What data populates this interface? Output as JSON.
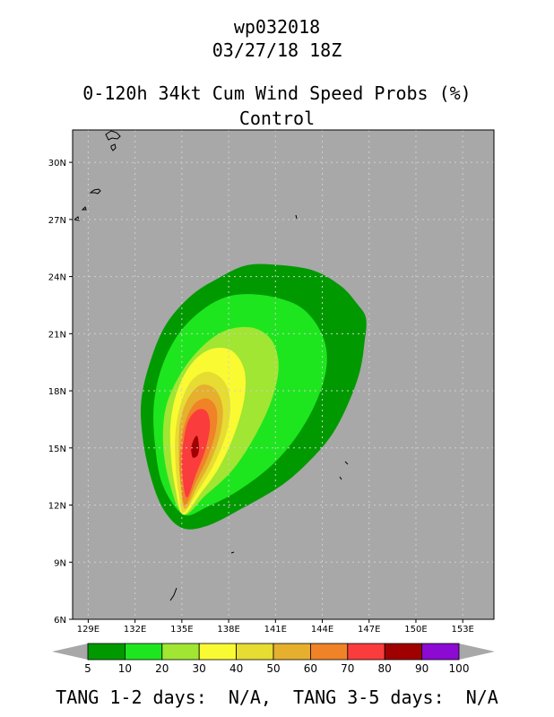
{
  "header": {
    "storm_id": "wp032018",
    "datetime": "03/27/18 18Z",
    "product": "0-120h 34kt Cum Wind Speed Probs (%)",
    "model": "Control"
  },
  "footer": {
    "tang_text": "TANG 1-2 days:  N/A,  TANG 3-5 days:  N/A"
  },
  "chart_data": {
    "type": "heatmap",
    "title": "0-120h 34kt Cum Wind Speed Probs (%)",
    "subtitle": "Control",
    "xlim": [
      128,
      155
    ],
    "ylim": [
      6,
      31.7
    ],
    "x_ticks": [
      129,
      132,
      135,
      138,
      141,
      144,
      147,
      150,
      153
    ],
    "x_tick_labels": [
      "129E",
      "132E",
      "135E",
      "138E",
      "141E",
      "144E",
      "147E",
      "150E",
      "153E"
    ],
    "y_ticks": [
      6,
      9,
      12,
      15,
      18,
      21,
      24,
      27,
      30
    ],
    "y_tick_labels": [
      "6N",
      "9N",
      "12N",
      "15N",
      "18N",
      "21N",
      "24N",
      "27N",
      "30N"
    ],
    "grid": true,
    "background_color": "#a8a8a8",
    "colorbar": {
      "levels": [
        5,
        10,
        20,
        30,
        40,
        50,
        60,
        70,
        80,
        90,
        100
      ],
      "labels": [
        "5",
        "10",
        "20",
        "30",
        "40",
        "50",
        "60",
        "70",
        "80",
        "90",
        "100"
      ],
      "colors": [
        "#009a00",
        "#1ee61e",
        "#a0e632",
        "#fafa32",
        "#e6dc32",
        "#e6af2d",
        "#f08228",
        "#fa3c3c",
        "#a00000",
        "#8c0ad2"
      ]
    },
    "contours": [
      {
        "level": 5,
        "color": "#009a00",
        "points": [
          [
            135.0,
            10.8
          ],
          [
            136.6,
            10.9
          ],
          [
            138.8,
            11.8
          ],
          [
            141.5,
            13.1
          ],
          [
            143.4,
            14.5
          ],
          [
            144.7,
            15.8
          ],
          [
            145.7,
            17.4
          ],
          [
            146.4,
            19.0
          ],
          [
            146.7,
            20.5
          ],
          [
            146.8,
            21.8
          ],
          [
            146.2,
            22.6
          ],
          [
            145.2,
            23.5
          ],
          [
            143.5,
            24.3
          ],
          [
            141.3,
            24.6
          ],
          [
            139.2,
            24.6
          ],
          [
            137.3,
            23.9
          ],
          [
            135.6,
            23.0
          ],
          [
            134.0,
            21.5
          ],
          [
            133.0,
            19.6
          ],
          [
            132.4,
            17.5
          ],
          [
            132.5,
            15.5
          ],
          [
            133.0,
            13.5
          ],
          [
            133.8,
            11.8
          ]
        ]
      },
      {
        "level": 10,
        "color": "#1ee61e",
        "points": [
          [
            135.1,
            11.5
          ],
          [
            136.6,
            11.9
          ],
          [
            138.7,
            12.8
          ],
          [
            140.9,
            14.2
          ],
          [
            142.6,
            15.9
          ],
          [
            143.8,
            17.8
          ],
          [
            144.3,
            19.6
          ],
          [
            143.9,
            21.1
          ],
          [
            142.6,
            22.4
          ],
          [
            140.4,
            23.0
          ],
          [
            138.2,
            23.0
          ],
          [
            136.4,
            22.3
          ],
          [
            134.8,
            21.0
          ],
          [
            133.7,
            19.2
          ],
          [
            133.2,
            17.2
          ],
          [
            133.3,
            15.0
          ],
          [
            133.8,
            13.0
          ]
        ]
      },
      {
        "level": 20,
        "color": "#a0e632",
        "points": [
          [
            135.1,
            11.5
          ],
          [
            136.5,
            12.5
          ],
          [
            138.2,
            13.8
          ],
          [
            139.6,
            15.5
          ],
          [
            140.7,
            17.4
          ],
          [
            141.2,
            19.2
          ],
          [
            140.8,
            20.6
          ],
          [
            139.6,
            21.3
          ],
          [
            137.9,
            21.2
          ],
          [
            136.4,
            20.4
          ],
          [
            135.0,
            19.0
          ],
          [
            134.0,
            17.2
          ],
          [
            133.8,
            15.2
          ],
          [
            134.2,
            13.2
          ]
        ]
      },
      {
        "level": 30,
        "color": "#fafa32",
        "points": [
          [
            135.1,
            11.5
          ],
          [
            136.2,
            12.6
          ],
          [
            137.4,
            14.0
          ],
          [
            138.4,
            15.8
          ],
          [
            139.0,
            17.6
          ],
          [
            139.0,
            19.1
          ],
          [
            138.2,
            20.1
          ],
          [
            136.9,
            20.2
          ],
          [
            135.7,
            19.5
          ],
          [
            134.8,
            18.2
          ],
          [
            134.3,
            16.5
          ],
          [
            134.3,
            14.6
          ],
          [
            134.6,
            12.8
          ]
        ]
      },
      {
        "level": 40,
        "color": "#e6dc32",
        "points": [
          [
            135.1,
            11.6
          ],
          [
            136.0,
            12.7
          ],
          [
            137.1,
            14.2
          ],
          [
            137.9,
            15.9
          ],
          [
            138.1,
            17.4
          ],
          [
            137.7,
            18.5
          ],
          [
            136.7,
            19.0
          ],
          [
            135.7,
            18.6
          ],
          [
            135.0,
            17.5
          ],
          [
            134.6,
            15.9
          ],
          [
            134.6,
            14.1
          ],
          [
            134.8,
            12.6
          ]
        ]
      },
      {
        "level": 50,
        "color": "#e6af2d",
        "points": [
          [
            135.2,
            11.8
          ],
          [
            136.0,
            13.0
          ],
          [
            136.9,
            14.4
          ],
          [
            137.5,
            15.9
          ],
          [
            137.6,
            17.2
          ],
          [
            137.1,
            18.1
          ],
          [
            136.2,
            18.3
          ],
          [
            135.4,
            17.6
          ],
          [
            134.9,
            16.4
          ],
          [
            134.8,
            14.8
          ],
          [
            134.9,
            13.2
          ]
        ]
      },
      {
        "level": 60,
        "color": "#f08228",
        "points": [
          [
            135.2,
            12.0
          ],
          [
            135.9,
            13.2
          ],
          [
            136.7,
            14.6
          ],
          [
            137.2,
            16.0
          ],
          [
            137.2,
            17.1
          ],
          [
            136.6,
            17.6
          ],
          [
            135.8,
            17.3
          ],
          [
            135.2,
            16.3
          ],
          [
            134.9,
            15.0
          ],
          [
            134.9,
            13.5
          ]
        ]
      },
      {
        "level": 70,
        "color": "#fa3c3c",
        "points": [
          [
            135.3,
            12.4
          ],
          [
            135.9,
            13.6
          ],
          [
            136.5,
            14.9
          ],
          [
            136.8,
            16.1
          ],
          [
            136.6,
            16.9
          ],
          [
            136.0,
            17.0
          ],
          [
            135.4,
            16.4
          ],
          [
            135.1,
            15.3
          ],
          [
            135.0,
            14.0
          ]
        ]
      },
      {
        "level": 80,
        "color": "#a00000",
        "points": [
          [
            135.7,
            14.5
          ],
          [
            136.0,
            14.6
          ],
          [
            136.1,
            15.0
          ],
          [
            136.0,
            15.6
          ],
          [
            135.8,
            15.5
          ],
          [
            135.6,
            15.0
          ]
        ]
      }
    ]
  }
}
